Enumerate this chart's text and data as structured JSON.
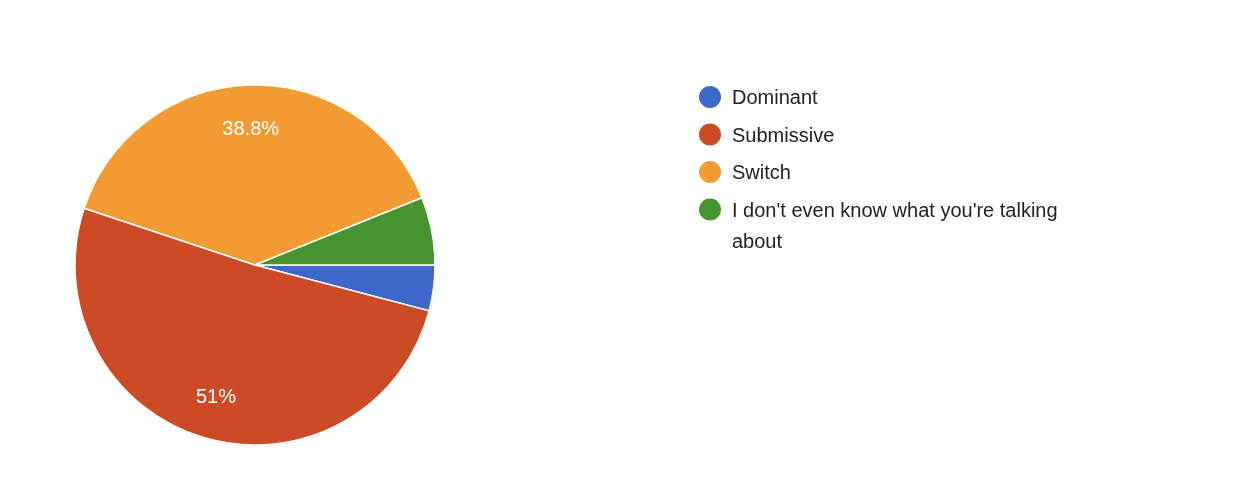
{
  "chart_data": {
    "type": "pie",
    "categories": [
      "Dominant",
      "Submissive",
      "Switch",
      "I don't even know what you're talking about"
    ],
    "values": [
      4.1,
      51,
      38.8,
      6.1
    ],
    "colors": [
      "#3d67c8",
      "#cc4a25",
      "#f29b32",
      "#479431"
    ],
    "value_labels": [
      null,
      "51%",
      "38.8%",
      null
    ],
    "legend": "right"
  }
}
